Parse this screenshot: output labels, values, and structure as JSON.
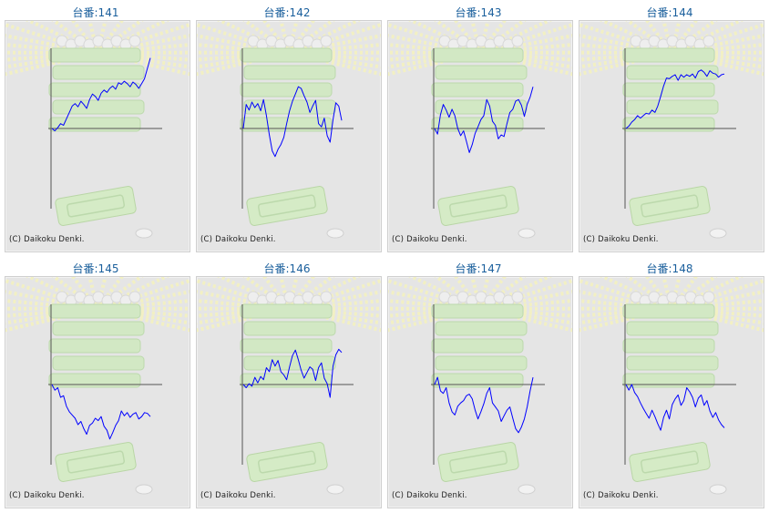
{
  "page": {
    "copyright": "(C) Daikoku Denki."
  },
  "chart_data": [
    {
      "type": "line",
      "title": "台番:141",
      "color": "#0000ff",
      "ylim": [
        -10,
        10
      ],
      "y": [
        0.0,
        -0.3,
        0.1,
        0.6,
        0.4,
        1.2,
        2.0,
        2.8,
        3.1,
        2.7,
        3.4,
        3.0,
        2.5,
        3.6,
        4.3,
        4.0,
        3.5,
        4.4,
        4.8,
        4.5,
        5.0,
        5.3,
        4.9,
        5.7,
        5.5,
        5.9,
        5.6,
        5.2,
        5.8,
        5.5,
        5.0,
        5.6,
        6.2,
        7.5,
        8.8
      ]
    },
    {
      "type": "line",
      "title": "台番:142",
      "color": "#0000ff",
      "ylim": [
        -10,
        10
      ],
      "y": [
        0.0,
        3.0,
        2.3,
        3.3,
        2.6,
        3.1,
        2.2,
        3.6,
        1.6,
        -0.8,
        -2.8,
        -3.5,
        -2.6,
        -2.0,
        -1.1,
        0.6,
        2.2,
        3.4,
        4.3,
        5.2,
        5.0,
        4.1,
        3.3,
        2.0,
        2.8,
        3.5,
        0.6,
        0.2,
        1.3,
        -0.9,
        -1.7,
        1.1,
        3.2,
        2.8,
        1.0
      ]
    },
    {
      "type": "line",
      "title": "台番:143",
      "color": "#0000ff",
      "ylim": [
        -10,
        10
      ],
      "y": [
        0.0,
        -0.7,
        1.7,
        3.0,
        2.3,
        1.4,
        2.4,
        1.6,
        0.0,
        -0.9,
        -0.3,
        -1.6,
        -3.0,
        -2.0,
        -0.6,
        0.2,
        1.1,
        1.6,
        3.6,
        2.8,
        0.9,
        0.4,
        -1.3,
        -0.8,
        -1.0,
        0.6,
        2.0,
        2.4,
        3.4,
        3.6,
        2.9,
        1.5,
        3.0,
        3.9,
        5.2
      ]
    },
    {
      "type": "line",
      "title": "台番:144",
      "color": "#0000ff",
      "ylim": [
        -10,
        10
      ],
      "y": [
        0.0,
        0.3,
        0.8,
        1.1,
        1.6,
        1.3,
        1.6,
        1.9,
        1.8,
        2.3,
        2.0,
        2.8,
        4.0,
        5.3,
        6.3,
        6.2,
        6.5,
        6.7,
        6.0,
        6.7,
        6.4,
        6.7,
        6.5,
        6.8,
        6.3,
        7.1,
        7.3,
        7.0,
        6.5,
        7.2,
        6.9,
        6.8,
        6.4,
        6.7,
        6.8
      ]
    },
    {
      "type": "line",
      "title": "台番:145",
      "color": "#0000ff",
      "ylim": [
        -10,
        10
      ],
      "y": [
        0.0,
        -0.7,
        -0.4,
        -1.6,
        -1.4,
        -2.7,
        -3.4,
        -3.8,
        -4.2,
        -5.0,
        -4.6,
        -5.5,
        -6.2,
        -5.1,
        -4.8,
        -4.2,
        -4.5,
        -4.0,
        -5.2,
        -5.7,
        -6.8,
        -6.0,
        -5.1,
        -4.5,
        -3.3,
        -3.9,
        -3.5,
        -4.1,
        -3.7,
        -3.5,
        -4.3,
        -4.0,
        -3.5,
        -3.6,
        -4.0
      ]
    },
    {
      "type": "line",
      "title": "台番:146",
      "color": "#0000ff",
      "ylim": [
        -10,
        10
      ],
      "y": [
        0.0,
        -0.4,
        0.1,
        -0.2,
        0.9,
        0.2,
        1.0,
        0.6,
        2.1,
        1.6,
        3.1,
        2.3,
        3.0,
        1.6,
        1.2,
        0.6,
        2.2,
        3.6,
        4.3,
        3.1,
        1.8,
        0.8,
        1.5,
        2.2,
        1.9,
        0.5,
        2.1,
        2.7,
        0.8,
        0.1,
        -1.6,
        2.3,
        3.7,
        4.4,
        4.0
      ]
    },
    {
      "type": "line",
      "title": "台番:147",
      "color": "#0000ff",
      "ylim": [
        -10,
        10
      ],
      "y": [
        0.0,
        0.9,
        -0.8,
        -1.1,
        -0.4,
        -2.3,
        -3.4,
        -3.8,
        -2.7,
        -2.3,
        -2.0,
        -1.4,
        -1.2,
        -1.8,
        -3.2,
        -4.3,
        -3.4,
        -2.4,
        -1.1,
        -0.4,
        -2.3,
        -2.8,
        -3.3,
        -4.6,
        -3.9,
        -3.2,
        -2.8,
        -4.2,
        -5.5,
        -6.0,
        -5.3,
        -4.3,
        -2.8,
        -0.8,
        0.9
      ]
    },
    {
      "type": "line",
      "title": "台番:148",
      "color": "#0000ff",
      "ylim": [
        -10,
        10
      ],
      "y": [
        0.0,
        -0.7,
        0.0,
        -1.0,
        -1.5,
        -2.3,
        -3.0,
        -3.6,
        -4.2,
        -3.2,
        -4.0,
        -4.9,
        -5.7,
        -4.1,
        -3.2,
        -4.3,
        -2.5,
        -1.8,
        -1.3,
        -2.6,
        -2.0,
        -0.4,
        -0.9,
        -1.6,
        -2.8,
        -1.7,
        -1.3,
        -2.6,
        -2.0,
        -3.3,
        -4.1,
        -3.5,
        -4.4,
        -5.0,
        -5.4
      ]
    }
  ]
}
